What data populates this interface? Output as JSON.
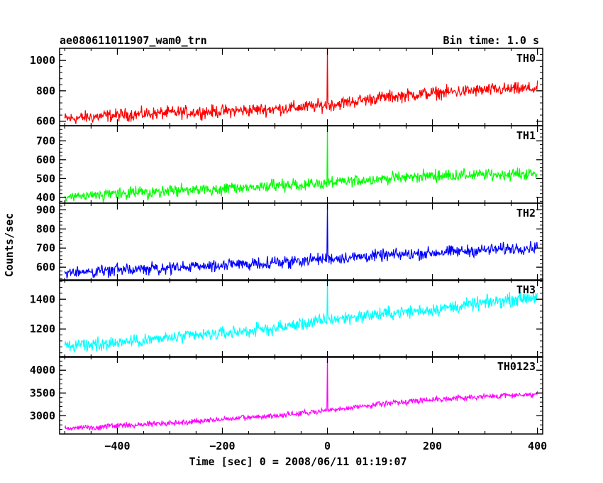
{
  "header": {
    "title": "ae080611011907_wam0_trn",
    "bin_time": "Bin time: 1.0 s"
  },
  "chart_data": {
    "type": "line",
    "xlabel": "Time [sec] 0 = 2008/06/11 01:19:07",
    "ylabel": "Counts/sec",
    "xlim": [
      -510,
      410
    ],
    "xticks": [
      -400,
      -200,
      0,
      200,
      400
    ],
    "bin_time_s": 1.0,
    "x_sampling": {
      "start": -500,
      "end": 400,
      "step": 1
    },
    "panels": [
      {
        "name": "TH0",
        "color": "#ff0000",
        "ylim": [
          570,
          1080
        ],
        "yticks": [
          600,
          800,
          1000
        ],
        "trend": {
          "x": [
            -500,
            -400,
            -300,
            -200,
            -100,
            0,
            100,
            200,
            300,
            400
          ],
          "y": [
            615,
            640,
            655,
            665,
            680,
            705,
            755,
            785,
            805,
            815
          ]
        },
        "scatter": 38,
        "spike": {
          "x": 0,
          "y": 1080
        }
      },
      {
        "name": "TH1",
        "color": "#00ff00",
        "ylim": [
          370,
          780
        ],
        "yticks": [
          400,
          500,
          600,
          700
        ],
        "trend": {
          "x": [
            -500,
            -400,
            -300,
            -200,
            -100,
            0,
            100,
            200,
            300,
            400
          ],
          "y": [
            395,
            420,
            435,
            445,
            460,
            475,
            500,
            515,
            520,
            525
          ]
        },
        "scatter": 28,
        "spike": {
          "x": 0,
          "y": 780
        }
      },
      {
        "name": "TH2",
        "color": "#0000ff",
        "ylim": [
          530,
          935
        ],
        "yticks": [
          600,
          700,
          800,
          900
        ],
        "trend": {
          "x": [
            -500,
            -400,
            -300,
            -200,
            -100,
            0,
            100,
            200,
            300,
            400
          ],
          "y": [
            570,
            585,
            595,
            610,
            625,
            645,
            660,
            675,
            690,
            705
          ]
        },
        "scatter": 28,
        "spike": {
          "x": 0,
          "y": 925
        }
      },
      {
        "name": "TH3",
        "color": "#00ffff",
        "ylim": [
          1010,
          1530
        ],
        "yticks": [
          1200,
          1400
        ],
        "trend": {
          "x": [
            -500,
            -400,
            -300,
            -200,
            -100,
            0,
            100,
            200,
            300,
            400
          ],
          "y": [
            1080,
            1110,
            1140,
            1170,
            1205,
            1260,
            1300,
            1330,
            1375,
            1420
          ]
        },
        "scatter": 40,
        "spike": {
          "x": 0,
          "y": 1530
        }
      },
      {
        "name": "TH0123",
        "color": "#ff00ff",
        "ylim": [
          2600,
          4300
        ],
        "yticks": [
          3000,
          3500,
          4000
        ],
        "trend": {
          "x": [
            -500,
            -400,
            -300,
            -200,
            -100,
            0,
            100,
            200,
            300,
            400
          ],
          "y": [
            2720,
            2780,
            2840,
            2920,
            3000,
            3110,
            3260,
            3360,
            3420,
            3480
          ]
        },
        "scatter": 55,
        "spike": {
          "x": 0,
          "y": 4300
        }
      }
    ]
  }
}
